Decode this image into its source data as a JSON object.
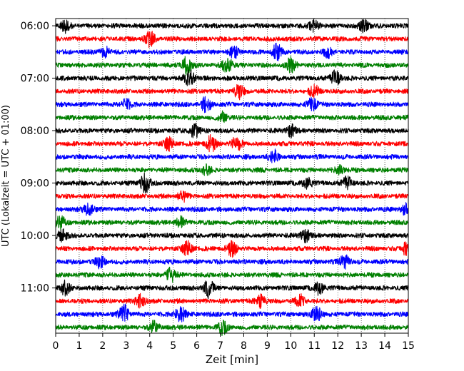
{
  "chart_data": {
    "type": "line",
    "title": "",
    "xlabel": "Zeit  [min]",
    "ylabel": "UTC (Lokalzeit = UTC + 01:00)",
    "xlim": [
      0,
      15
    ],
    "x_ticks": [
      0,
      1,
      2,
      3,
      4,
      5,
      6,
      7,
      8,
      9,
      10,
      11,
      12,
      13,
      14,
      15
    ],
    "x_tick_labels": [
      "0",
      "1",
      "2",
      "3",
      "4",
      "5",
      "6",
      "7",
      "8",
      "9",
      "10",
      "11",
      "12",
      "13",
      "14",
      "15"
    ],
    "y_tick_labels": [
      "06:00",
      "07:00",
      "08:00",
      "09:00",
      "10:00",
      "11:00"
    ],
    "y_ticks_trace_index": [
      0,
      4,
      8,
      12,
      16,
      20
    ],
    "trace_interval_minutes": 15,
    "grid": "vertical dotted",
    "trace_colors": [
      "#000000",
      "#ff0000",
      "#0000ff",
      "#008000"
    ],
    "traces": [
      {
        "start": "06:00",
        "color": "#000000",
        "events": [
          [
            0.4,
            0.5
          ],
          [
            11,
            0.45
          ],
          [
            13.1,
            0.5
          ]
        ]
      },
      {
        "start": "06:15",
        "color": "#ff0000",
        "events": [
          [
            4,
            0.6
          ]
        ]
      },
      {
        "start": "06:30",
        "color": "#0000ff",
        "events": [
          [
            2.1,
            0.4
          ],
          [
            7.6,
            0.45
          ],
          [
            9.4,
            0.6
          ],
          [
            11.6,
            0.4
          ]
        ]
      },
      {
        "start": "06:45",
        "color": "#008000",
        "events": [
          [
            5.6,
            0.8
          ],
          [
            7.3,
            0.65
          ],
          [
            10,
            0.55
          ]
        ]
      },
      {
        "start": "07:00",
        "color": "#000000",
        "events": [
          [
            5.7,
            0.7
          ],
          [
            11.9,
            0.6
          ]
        ]
      },
      {
        "start": "07:15",
        "color": "#ff0000",
        "events": [
          [
            7.8,
            0.6
          ],
          [
            11,
            0.45
          ]
        ]
      },
      {
        "start": "07:30",
        "color": "#0000ff",
        "events": [
          [
            3,
            0.4
          ],
          [
            6.4,
            0.6
          ],
          [
            10.9,
            0.5
          ]
        ]
      },
      {
        "start": "07:45",
        "color": "#008000",
        "events": [
          [
            7.1,
            0.4
          ]
        ]
      },
      {
        "start": "08:00",
        "color": "#000000",
        "events": [
          [
            5.9,
            0.55
          ],
          [
            10,
            0.45
          ]
        ]
      },
      {
        "start": "08:15",
        "color": "#ff0000",
        "events": [
          [
            4.8,
            0.5
          ],
          [
            6.6,
            0.6
          ],
          [
            7.7,
            0.6
          ]
        ]
      },
      {
        "start": "08:30",
        "color": "#0000ff",
        "events": [
          [
            9.3,
            0.55
          ]
        ]
      },
      {
        "start": "08:45",
        "color": "#008000",
        "events": [
          [
            6.4,
            0.35
          ],
          [
            12.1,
            0.35
          ]
        ]
      },
      {
        "start": "09:00",
        "color": "#000000",
        "events": [
          [
            3.8,
            0.75
          ],
          [
            10.7,
            0.4
          ],
          [
            12.4,
            0.5
          ]
        ]
      },
      {
        "start": "09:15",
        "color": "#ff0000",
        "events": [
          [
            5.4,
            0.4
          ]
        ]
      },
      {
        "start": "09:30",
        "color": "#0000ff",
        "events": [
          [
            1.4,
            0.45
          ],
          [
            14.9,
            0.5
          ]
        ]
      },
      {
        "start": "09:45",
        "color": "#008000",
        "events": [
          [
            0.2,
            0.5
          ],
          [
            5.3,
            0.4
          ]
        ]
      },
      {
        "start": "10:00",
        "color": "#000000",
        "events": [
          [
            0.3,
            0.45
          ],
          [
            10.6,
            0.5
          ]
        ]
      },
      {
        "start": "10:15",
        "color": "#ff0000",
        "events": [
          [
            5.6,
            0.55
          ],
          [
            7.5,
            0.55
          ],
          [
            14.9,
            0.45
          ]
        ]
      },
      {
        "start": "10:30",
        "color": "#0000ff",
        "events": [
          [
            1.9,
            0.45
          ],
          [
            12.3,
            0.55
          ]
        ]
      },
      {
        "start": "10:45",
        "color": "#008000",
        "events": [
          [
            4.9,
            0.6
          ]
        ]
      },
      {
        "start": "11:00",
        "color": "#000000",
        "events": [
          [
            0.4,
            0.55
          ],
          [
            6.5,
            0.75
          ],
          [
            11.2,
            0.5
          ]
        ]
      },
      {
        "start": "11:15",
        "color": "#ff0000",
        "events": [
          [
            3.6,
            0.5
          ],
          [
            8.7,
            0.5
          ],
          [
            10.4,
            0.5
          ]
        ]
      },
      {
        "start": "11:30",
        "color": "#0000ff",
        "events": [
          [
            2.9,
            0.75
          ],
          [
            5.3,
            0.7
          ],
          [
            11.1,
            0.7
          ]
        ]
      },
      {
        "start": "11:45",
        "color": "#008000",
        "events": [
          [
            4.2,
            0.5
          ],
          [
            7.1,
            0.55
          ]
        ]
      }
    ]
  }
}
